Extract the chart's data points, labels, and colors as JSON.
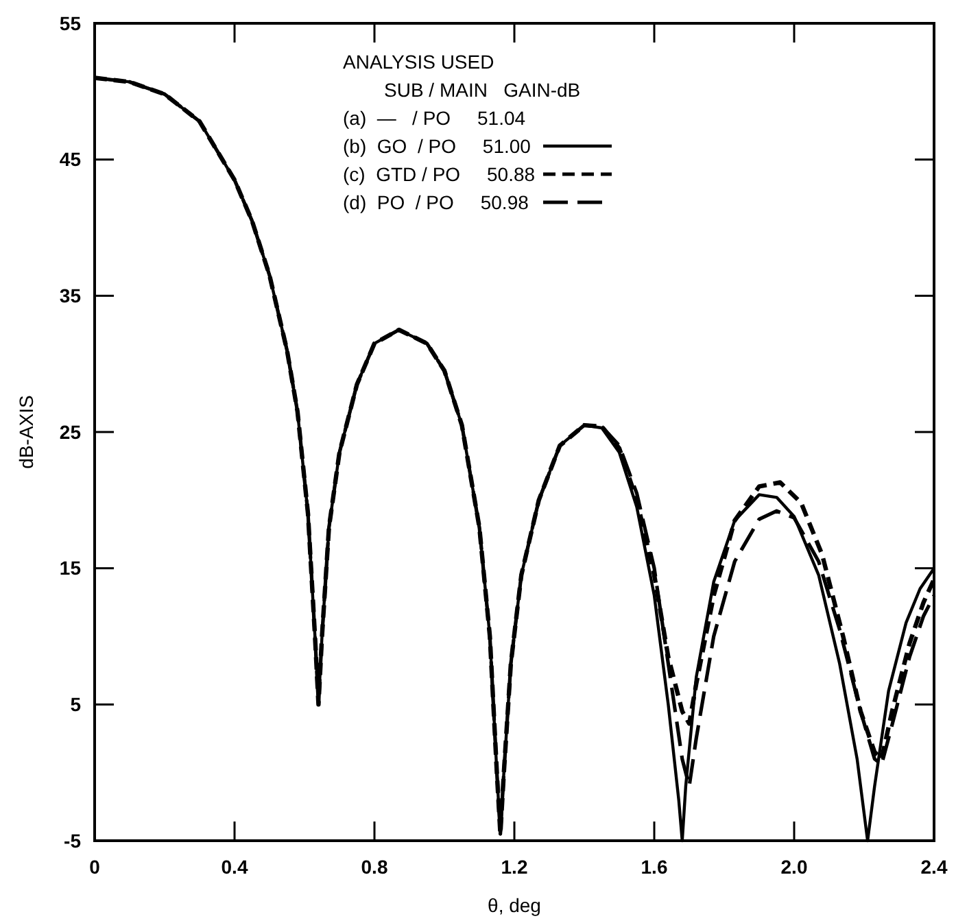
{
  "chart_data": {
    "type": "line",
    "xlabel": "θ, deg",
    "ylabel": "dB-AXIS",
    "legend_title": "ANALYSIS USED",
    "annotations": [
      "SUB / MAIN   GAIN-dB",
      "(a)  —   / PO     51.04"
    ],
    "xlim": [
      0,
      2.4
    ],
    "xticks": [
      0,
      0.4,
      0.8,
      1.2,
      1.6,
      {
        "value": 2,
        "label": "2.0"
      },
      2.4
    ],
    "ylim": [
      -5,
      55
    ],
    "yticks": [
      -5,
      5,
      15,
      25,
      35,
      45,
      55
    ],
    "grid": false,
    "legend": "top",
    "marker": "none",
    "series": [
      {
        "name": "(b)  GO  / PO     51.00",
        "color": "#000000",
        "line_style": "solid",
        "x": [
          0,
          0.1,
          0.2,
          0.3,
          0.4,
          0.45,
          0.5,
          0.55,
          0.58,
          0.61,
          0.63,
          0.64,
          0.65,
          0.67,
          0.7,
          0.75,
          0.8,
          0.87,
          0.95,
          1.0,
          1.05,
          1.1,
          1.13,
          1.15,
          1.16,
          1.17,
          1.19,
          1.22,
          1.27,
          1.33,
          1.4,
          1.45,
          1.5,
          1.55,
          1.6,
          1.64,
          1.67,
          1.68,
          1.69,
          1.72,
          1.77,
          1.83,
          1.9,
          1.95,
          2.0,
          2.07,
          2.13,
          2.18,
          2.21,
          2.23,
          2.27,
          2.32,
          2.36,
          2.4
        ],
        "values": [
          51.0,
          50.7,
          49.8,
          47.8,
          43.5,
          40.5,
          36.5,
          31,
          26.5,
          19,
          10,
          5,
          10,
          18,
          23.5,
          28.5,
          31.5,
          32.5,
          31.5,
          29.5,
          25.5,
          18,
          10,
          0,
          -4.5,
          0,
          8,
          14.5,
          20,
          24,
          25.5,
          25.3,
          23.5,
          19.5,
          13,
          5,
          -2,
          -5,
          -1,
          7,
          14,
          18.5,
          20.4,
          20.2,
          18.8,
          14.5,
          8,
          1,
          -5,
          -1,
          6,
          11,
          13.5,
          15
        ]
      },
      {
        "name": "(c)  GTD / PO     50.88",
        "color": "#000000",
        "line_style": "dashed",
        "x": [
          0,
          0.1,
          0.2,
          0.3,
          0.4,
          0.45,
          0.5,
          0.55,
          0.58,
          0.61,
          0.63,
          0.64,
          0.65,
          0.67,
          0.7,
          0.75,
          0.8,
          0.87,
          0.95,
          1.0,
          1.05,
          1.1,
          1.13,
          1.15,
          1.16,
          1.17,
          1.19,
          1.22,
          1.27,
          1.33,
          1.4,
          1.45,
          1.5,
          1.55,
          1.6,
          1.64,
          1.68,
          1.7,
          1.72,
          1.77,
          1.83,
          1.9,
          1.96,
          2.02,
          2.08,
          2.14,
          2.19,
          2.23,
          2.25,
          2.28,
          2.33,
          2.37,
          2.4
        ],
        "values": [
          51.0,
          50.7,
          49.8,
          47.8,
          43.5,
          40.5,
          36.5,
          31,
          26.5,
          19,
          10,
          5,
          10,
          18,
          23.5,
          28.5,
          31.5,
          32.5,
          31.5,
          29.5,
          25.5,
          18,
          10,
          0,
          -4.5,
          0,
          8,
          14.5,
          20,
          24,
          25.5,
          25.4,
          23.8,
          20,
          14.5,
          8.5,
          4.5,
          3.6,
          6.5,
          13,
          18.5,
          21,
          21.3,
          19.8,
          16,
          10,
          4.5,
          1.5,
          1,
          4.5,
          9.5,
          12.5,
          14.2
        ]
      },
      {
        "name": "(d)  PO  / PO     50.98",
        "color": "#000000",
        "line_style": "dashed",
        "x": [
          0,
          0.1,
          0.2,
          0.3,
          0.4,
          0.45,
          0.5,
          0.55,
          0.58,
          0.61,
          0.63,
          0.64,
          0.65,
          0.67,
          0.7,
          0.75,
          0.8,
          0.87,
          0.95,
          1.0,
          1.05,
          1.1,
          1.13,
          1.15,
          1.16,
          1.17,
          1.19,
          1.22,
          1.27,
          1.33,
          1.4,
          1.45,
          1.5,
          1.55,
          1.6,
          1.64,
          1.68,
          1.7,
          1.72,
          1.77,
          1.83,
          1.9,
          1.95,
          2.0,
          2.07,
          2.13,
          2.19,
          2.23,
          2.25,
          2.28,
          2.33,
          2.37,
          2.4
        ],
        "values": [
          51.0,
          50.7,
          49.8,
          47.8,
          43.5,
          40.5,
          36.5,
          31,
          26.5,
          19,
          10,
          5,
          10,
          18,
          23.5,
          28.5,
          31.5,
          32.5,
          31.5,
          29.5,
          25.5,
          18,
          10,
          0,
          -4.5,
          0,
          8,
          14.5,
          20,
          24,
          25.5,
          25.4,
          24,
          20.5,
          15,
          8,
          1,
          -1,
          2.5,
          10,
          15.5,
          18.6,
          19.2,
          18.7,
          15.5,
          10.5,
          4.5,
          1,
          0.6,
          3.5,
          8.5,
          11.5,
          13
        ]
      }
    ]
  }
}
